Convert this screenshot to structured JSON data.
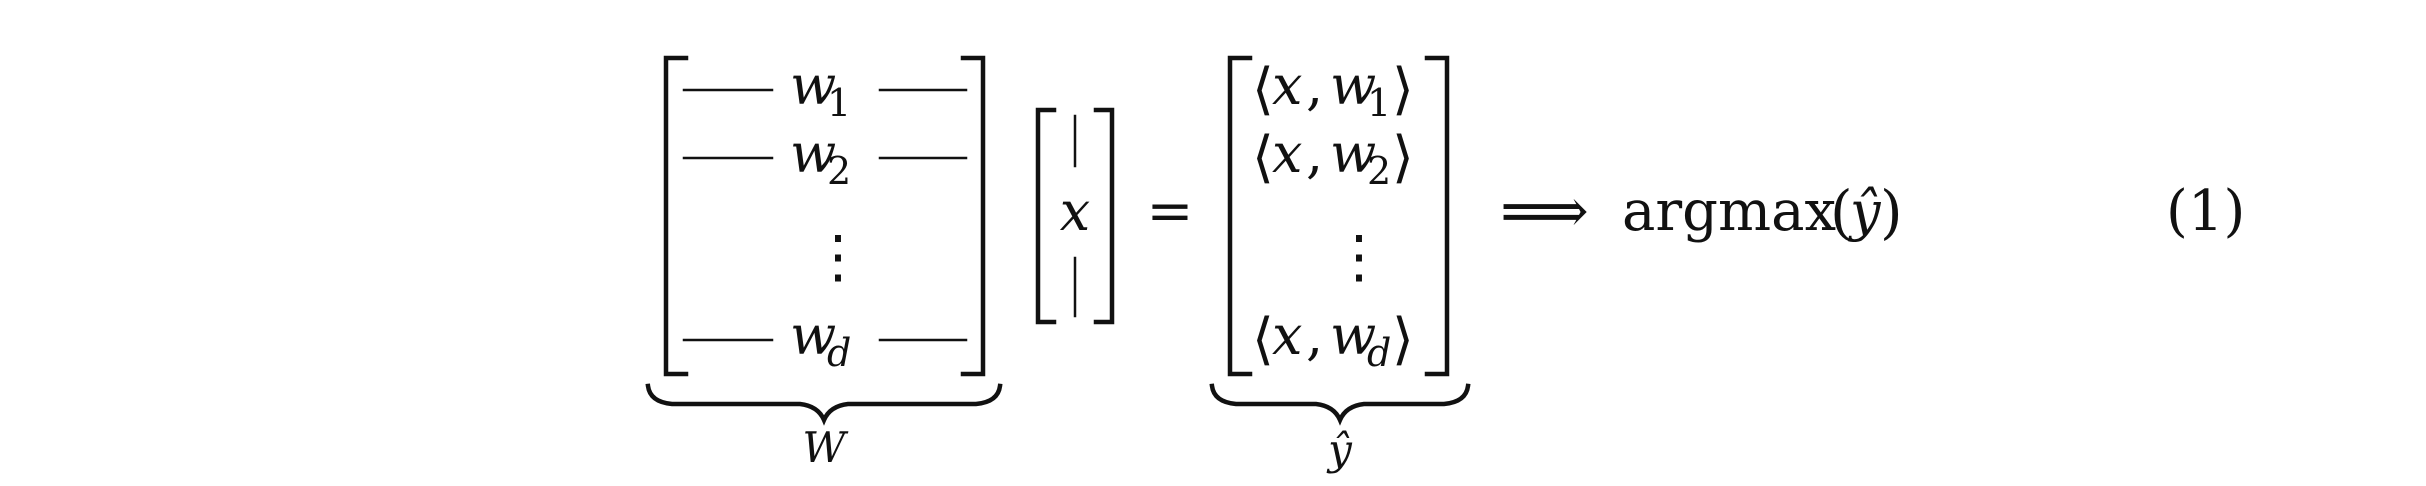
{
  "equation": {
    "matrix_W": {
      "rows": [
        {
          "base": "w",
          "sub": "1"
        },
        {
          "base": "w",
          "sub": "2"
        },
        {
          "base": "⋮",
          "sub": ""
        },
        {
          "base": "w",
          "sub": "d"
        }
      ],
      "underbrace_label": "W"
    },
    "vector_x": {
      "label": "x"
    },
    "equals_sign": "=",
    "result_vector": {
      "rows": [
        {
          "open": "⟨",
          "x": "x",
          "comma": ",",
          "w": "w",
          "sub": "1",
          "close": "⟩"
        },
        {
          "open": "⟨",
          "x": "x",
          "comma": ",",
          "w": "w",
          "sub": "2",
          "close": "⟩"
        },
        {
          "open": "",
          "x": "⋮",
          "comma": "",
          "w": "",
          "sub": "",
          "close": ""
        },
        {
          "open": "⟨",
          "x": "x",
          "comma": ",",
          "w": "w",
          "sub": "d",
          "close": "⟩"
        }
      ],
      "underbrace_label": "ŷ"
    },
    "implies_arrow": "⟹",
    "argmax": {
      "function": "argmax",
      "open_paren": "(",
      "argument": "ŷ",
      "close_paren": ")"
    },
    "equation_number": "(1)"
  }
}
